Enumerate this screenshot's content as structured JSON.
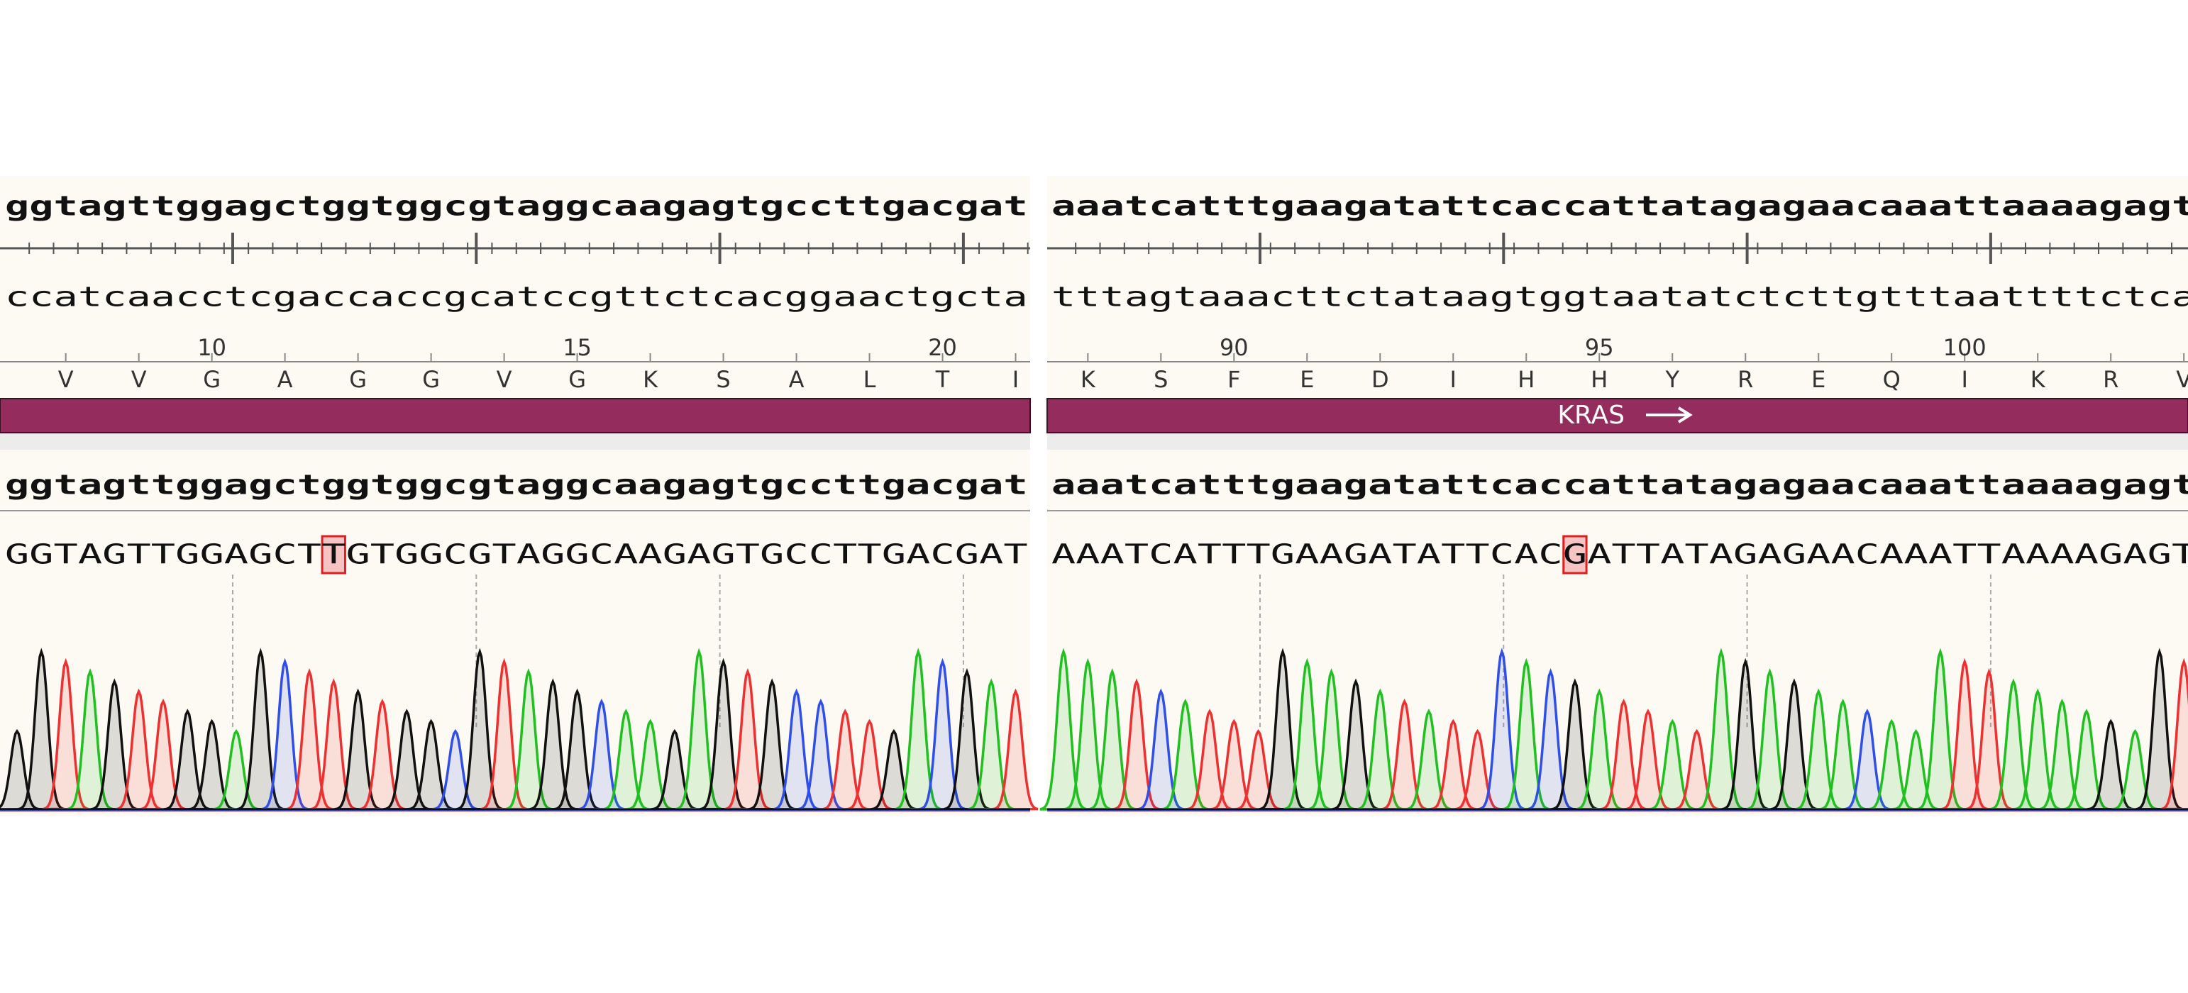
{
  "panels": [
    {
      "top_strand": "ggtagttggagctggtggcgtaggcaagagtgccttgacgat",
      "bottom_strand": "ccatcaacctcgaccaccgcatccgttctcacggaactgcta",
      "position_labels": [
        10,
        15,
        20
      ],
      "amino_acids": [
        "V",
        "V",
        "G",
        "A",
        "G",
        "G",
        "V",
        "G",
        "K",
        "S",
        "A",
        "L",
        "T",
        "I"
      ],
      "reference": "ggtagttggagctggtggcgtaggcaagagtgccttgacgat",
      "read": "GGTAGTTGGAGCTTGTGGCGTAGGCAAGAGTGCCTTGACGAT"
    },
    {
      "top_strand": "aaatcatttgaagatattcaccattatagagaacaaattaaaagagt",
      "bottom_strand": "tttagtaaacttctataagtggtaatatctcttgtttaattttctca",
      "position_labels": [
        90,
        95,
        100
      ],
      "amino_acids": [
        "K",
        "S",
        "F",
        "E",
        "D",
        "I",
        "H",
        "H",
        "Y",
        "R",
        "E",
        "Q",
        "I",
        "K",
        "R",
        "V"
      ],
      "feature": "KRAS",
      "reference": "aaatcatttgaagatattcaccattatagagaacaaattaaaagagt",
      "read": "AAATCATTTGAAGATATTCACGATTATAGAGAACAAATTAAAAGAGT"
    }
  ]
}
